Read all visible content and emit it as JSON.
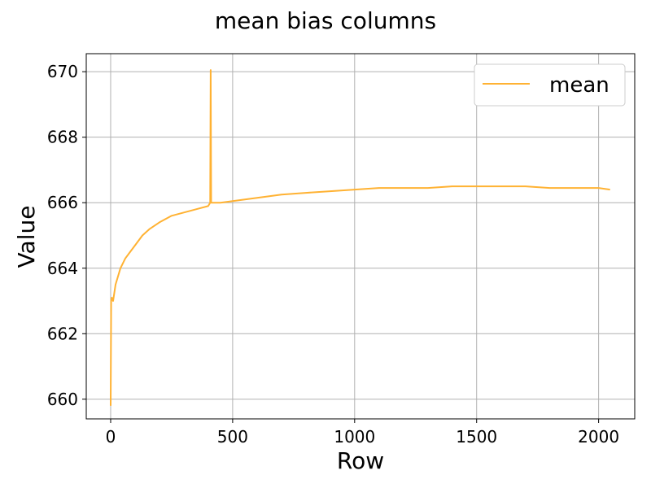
{
  "chart_data": {
    "type": "line",
    "title": "mean bias columns",
    "xlabel": "Row",
    "ylabel": "Value",
    "xlim": [
      -100,
      2148
    ],
    "ylim": [
      659.4,
      670.55
    ],
    "xticks": [
      0,
      500,
      1000,
      1500,
      2000
    ],
    "yticks": [
      660,
      662,
      664,
      666,
      668,
      670
    ],
    "grid": true,
    "legend_position": "top-right",
    "series": [
      {
        "name": "mean",
        "color": "#ffb233",
        "x": [
          0,
          2,
          5,
          10,
          20,
          40,
          60,
          80,
          100,
          130,
          160,
          200,
          250,
          300,
          350,
          400,
          408,
          410,
          412,
          450,
          500,
          550,
          600,
          700,
          800,
          900,
          1000,
          1100,
          1200,
          1300,
          1400,
          1500,
          1600,
          1700,
          1800,
          1900,
          2000,
          2047
        ],
        "y": [
          659.8,
          663.0,
          663.1,
          663.0,
          663.5,
          664.0,
          664.3,
          664.5,
          664.7,
          665.0,
          665.2,
          665.4,
          665.6,
          665.7,
          665.8,
          665.9,
          666.0,
          670.05,
          666.0,
          666.0,
          666.05,
          666.1,
          666.15,
          666.25,
          666.3,
          666.35,
          666.4,
          666.45,
          666.45,
          666.45,
          666.5,
          666.5,
          666.5,
          666.5,
          666.45,
          666.45,
          666.45,
          666.4
        ]
      }
    ]
  }
}
